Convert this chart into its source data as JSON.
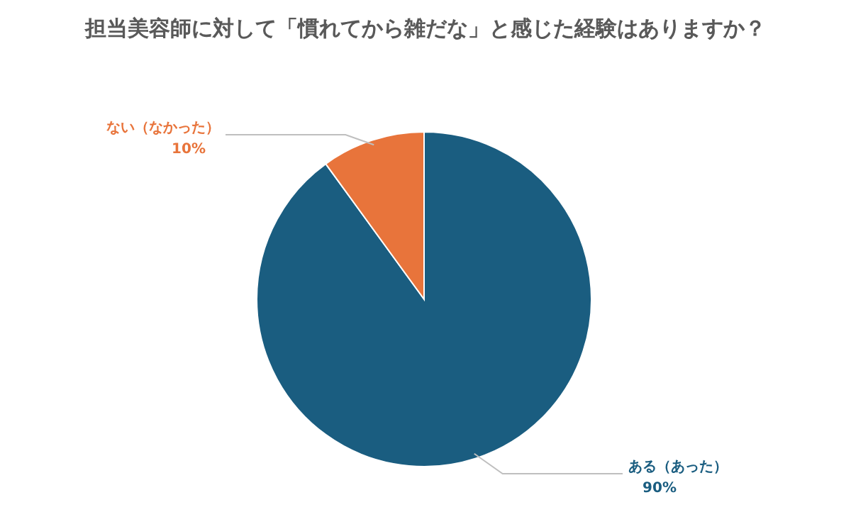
{
  "chart_data": {
    "type": "pie",
    "title": "担当美容師に対して「慣れてから雑だな」と感じた経験はありますか？",
    "categories": [
      "ある（あった）",
      "ない（なかった）"
    ],
    "values": [
      90,
      10
    ],
    "colors": [
      "#1a5d80",
      "#e8743b"
    ],
    "value_labels": [
      "90%",
      "10%"
    ],
    "legend": false
  }
}
